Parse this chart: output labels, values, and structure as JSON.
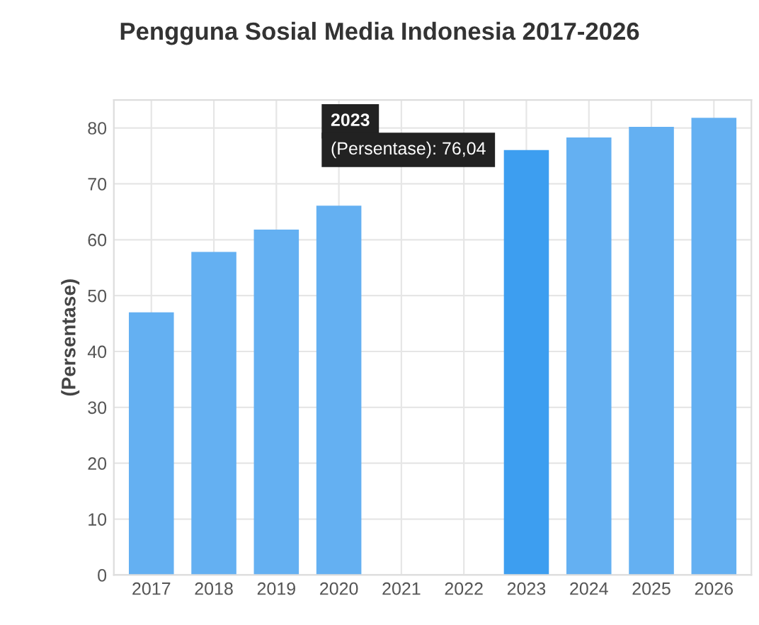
{
  "chart_data": {
    "type": "bar",
    "title": "Pengguna Sosial Media Indonesia 2017-2026",
    "ylabel": "(Persentase)",
    "categories": [
      "2017",
      "2018",
      "2019",
      "2020",
      "2021",
      "2022",
      "2023",
      "2024",
      "2025",
      "2026"
    ],
    "values": [
      47.0,
      57.8,
      61.8,
      66.1,
      null,
      null,
      76.04,
      78.3,
      80.2,
      81.8
    ],
    "colors": [
      "#64b0f2",
      "#64b0f2",
      "#64b0f2",
      "#64b0f2",
      "#64b0f2",
      "#64b0f2",
      "#3d9ef0",
      "#64b0f2",
      "#64b0f2",
      "#64b0f2"
    ],
    "ylim": [
      0,
      85
    ],
    "yticks": [
      0,
      10,
      20,
      30,
      40,
      50,
      60,
      70,
      80
    ],
    "grid": true,
    "annotations": [
      "2023",
      "(Persentase): 76,04"
    ]
  }
}
